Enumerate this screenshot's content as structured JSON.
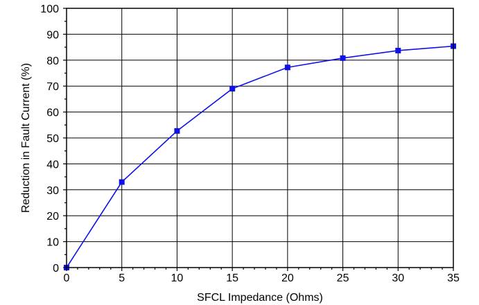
{
  "chart_data": {
    "type": "line",
    "title": "",
    "xlabel": "SFCL Impedance (Ohms)",
    "ylabel": "Reduction in Fault Current (%)",
    "xlim": [
      0,
      35
    ],
    "ylim": [
      0,
      100
    ],
    "x_ticks": [
      0,
      5,
      10,
      15,
      20,
      25,
      30,
      35
    ],
    "y_ticks": [
      0,
      10,
      20,
      30,
      40,
      50,
      60,
      70,
      80,
      90,
      100
    ],
    "x_tick_labels": [
      "0",
      "5",
      "10",
      "15",
      "20",
      "25",
      "30",
      "35"
    ],
    "y_tick_labels": [
      "0",
      "10",
      "20",
      "30",
      "40",
      "50",
      "60",
      "70",
      "80",
      "90",
      "100"
    ],
    "grid": true,
    "legend": "none",
    "series": [
      {
        "color": "#1010e8",
        "marker": "square",
        "x": [
          0,
          5,
          10,
          15,
          20,
          25,
          30,
          35
        ],
        "y": [
          0,
          33,
          52.7,
          69,
          77.2,
          80.8,
          83.7,
          85.4
        ]
      }
    ]
  }
}
